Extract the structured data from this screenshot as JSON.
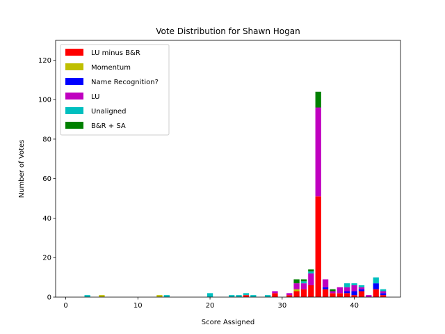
{
  "chart_data": {
    "type": "bar",
    "stacked": true,
    "title": "Vote Distribution for Shawn Hogan",
    "xlabel": "Score Assigned",
    "ylabel": "Number of Votes",
    "xlim": [
      -1.4,
      46.4
    ],
    "ylim": [
      0,
      130
    ],
    "xticks": [
      0,
      10,
      20,
      30,
      40
    ],
    "yticks": [
      0,
      20,
      40,
      60,
      80,
      100,
      120
    ],
    "grid": false,
    "legend_position": "top-left",
    "x": [
      3,
      5,
      13,
      14,
      20,
      23,
      24,
      25,
      26,
      28,
      29,
      31,
      32,
      33,
      34,
      35,
      36,
      37,
      38,
      39,
      40,
      41,
      42,
      43,
      44
    ],
    "series": [
      {
        "name": "LU minus B&R",
        "color": "#ff0000",
        "values": [
          0,
          0,
          0,
          0,
          0,
          0,
          0,
          1,
          0,
          0,
          2,
          1,
          3,
          4,
          6,
          51,
          4,
          2,
          2,
          2,
          1,
          3,
          0,
          4,
          1
        ]
      },
      {
        "name": "Momentum",
        "color": "#bfbf00",
        "values": [
          0,
          1,
          1,
          0,
          0,
          0,
          0,
          0,
          0,
          0,
          0,
          0,
          1,
          0,
          0,
          0,
          0,
          0,
          0,
          0,
          0,
          0,
          0,
          0,
          0
        ]
      },
      {
        "name": "Name Recognition?",
        "color": "#0000ff",
        "values": [
          0,
          0,
          0,
          0,
          0,
          0,
          0,
          0,
          0,
          0,
          0,
          0,
          0,
          0,
          0,
          0,
          1,
          0,
          0,
          1,
          2,
          1,
          0,
          3,
          1
        ]
      },
      {
        "name": "LU",
        "color": "#bf00bf",
        "values": [
          0,
          0,
          0,
          0,
          0,
          0,
          0,
          0,
          0,
          0,
          1,
          1,
          3,
          3,
          6,
          45,
          4,
          1,
          3,
          2,
          3,
          1,
          1,
          0,
          1
        ]
      },
      {
        "name": "Unaligned",
        "color": "#00bfbf",
        "values": [
          1,
          0,
          0,
          1,
          2,
          1,
          1,
          1,
          1,
          1,
          0,
          0,
          0,
          1,
          1,
          0,
          0,
          0,
          0,
          2,
          1,
          1,
          0,
          3,
          1
        ]
      },
      {
        "name": "B&R + SA",
        "color": "#008000",
        "values": [
          0,
          0,
          0,
          0,
          0,
          0,
          0,
          0,
          0,
          0,
          0,
          0,
          2,
          1,
          1,
          8,
          0,
          1,
          0,
          0,
          0,
          0,
          0,
          0,
          0
        ]
      }
    ]
  }
}
